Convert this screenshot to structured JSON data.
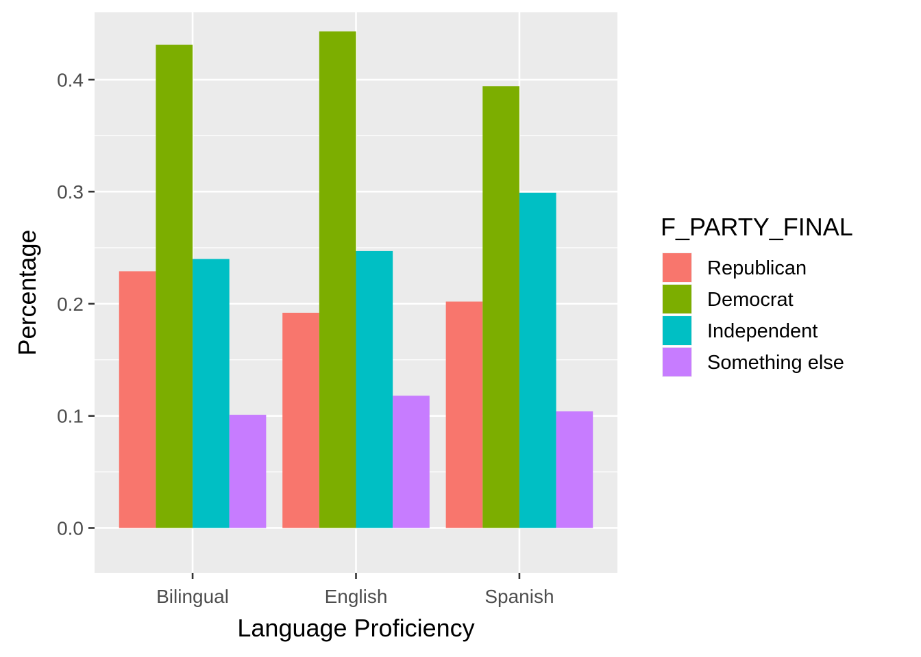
{
  "chart_data": {
    "type": "bar",
    "xlabel": "Language Proficiency",
    "ylabel": "Percentage",
    "categories": [
      "Bilingual",
      "English",
      "Spanish"
    ],
    "ylim": [
      -0.04,
      0.46
    ],
    "yticks": [
      "0.0",
      "0.1",
      "0.2",
      "0.3",
      "0.4"
    ],
    "ytick_values": [
      0.0,
      0.1,
      0.2,
      0.3,
      0.4
    ],
    "grid": true,
    "legend": {
      "title": "F_PARTY_FINAL",
      "position": "right"
    },
    "series": [
      {
        "name": "Republican",
        "color": "#F8766D",
        "values": [
          0.229,
          0.192,
          0.202
        ]
      },
      {
        "name": "Democrat",
        "color": "#7CAE00",
        "values": [
          0.431,
          0.443,
          0.394
        ]
      },
      {
        "name": "Independent",
        "color": "#00BFC4",
        "values": [
          0.24,
          0.247,
          0.299
        ]
      },
      {
        "name": "Something else",
        "color": "#C77CFF",
        "values": [
          0.101,
          0.118,
          0.104
        ]
      }
    ]
  }
}
